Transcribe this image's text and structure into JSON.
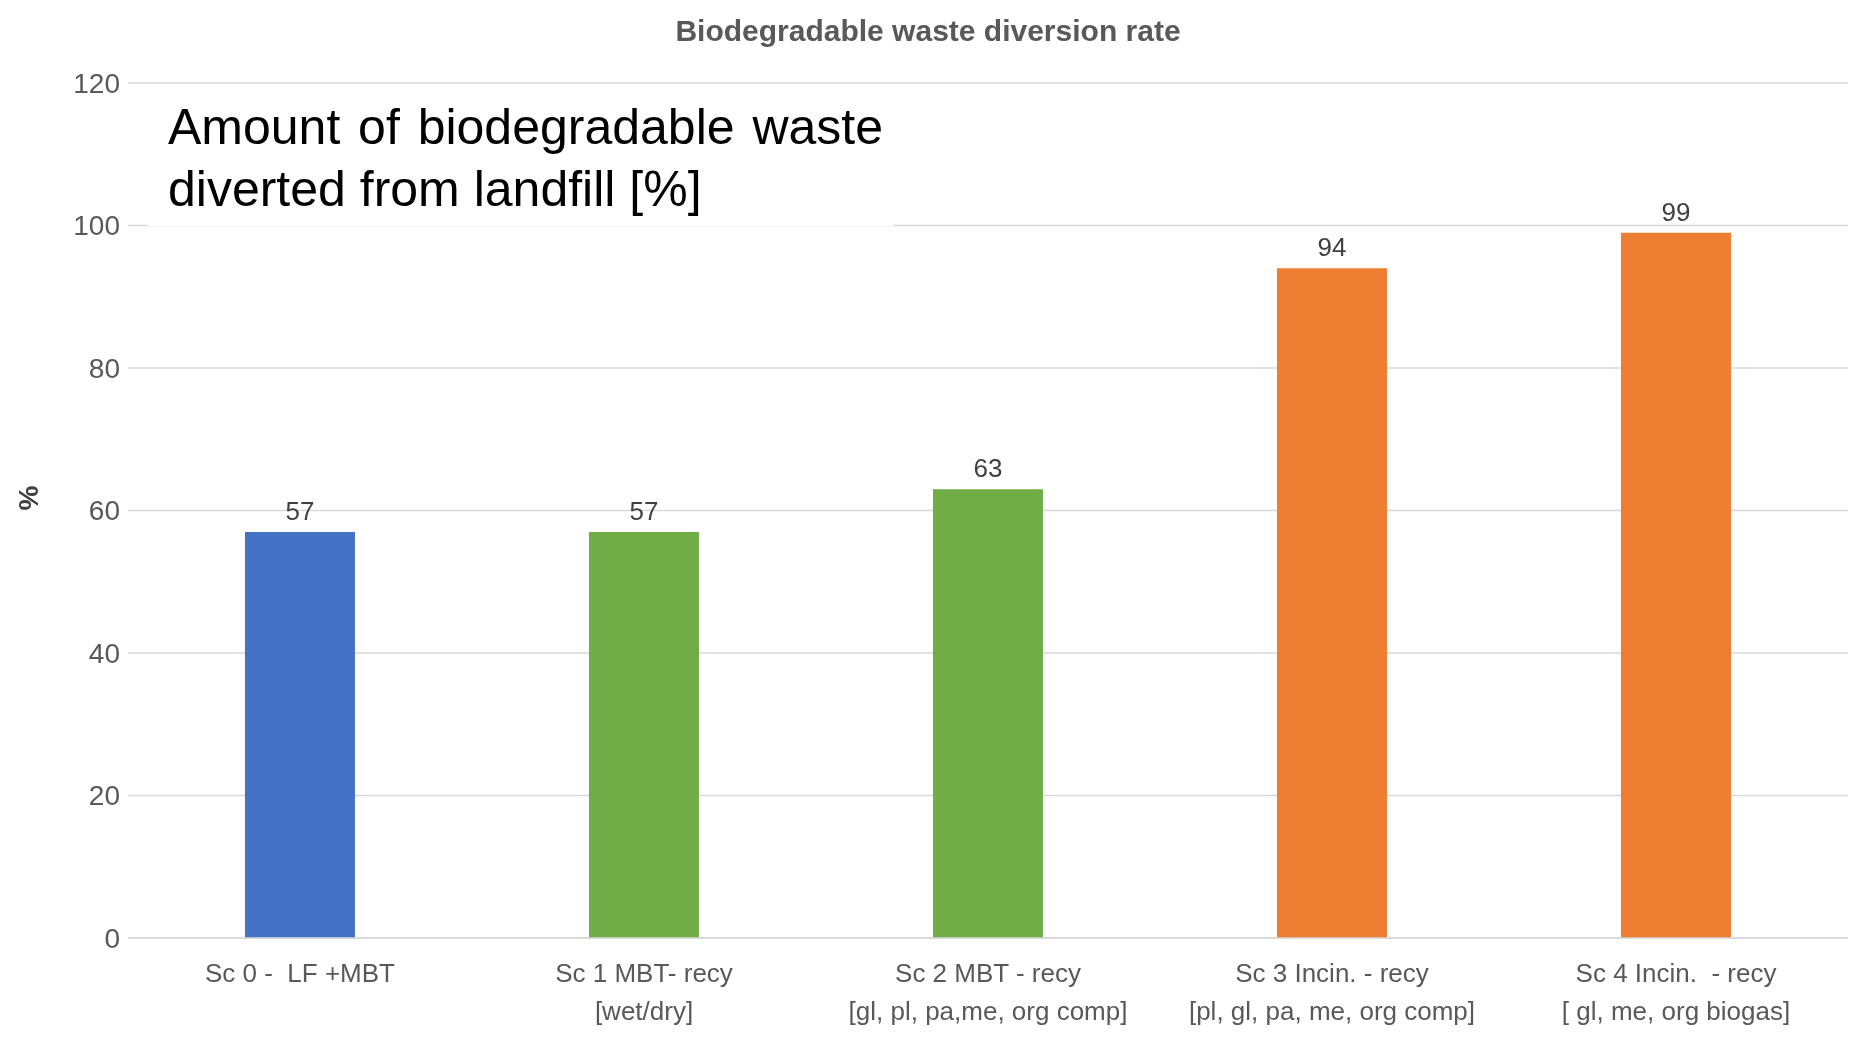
{
  "chart_data": {
    "type": "bar",
    "title": "Biodegradable waste diversion rate",
    "ylabel": "%",
    "annotations": [
      "Amount of biodegradable waste diverted from landfill [%]"
    ],
    "categories": [
      "Sc 0 -  LF +MBT",
      "Sc 1 MBT- recy\n[wet/dry]",
      "Sc 2 MBT - recy\n[gl, pl, pa,me, org comp]",
      "Sc 3 Incin. - recy\n[pl, gl, pa, me, org comp]",
      "Sc 4 Incin.  - recy\n[ gl, me, org biogas]"
    ],
    "values": [
      57,
      57,
      63,
      94,
      99
    ],
    "colors": [
      "#4472c4",
      "#70ad47",
      "#70ad47",
      "#ed7d31",
      "#ed7d31"
    ],
    "ylim": [
      0,
      120
    ],
    "yticks": [
      0,
      20,
      40,
      60,
      80,
      100,
      120
    ],
    "grid": "y",
    "data_labels": true
  }
}
